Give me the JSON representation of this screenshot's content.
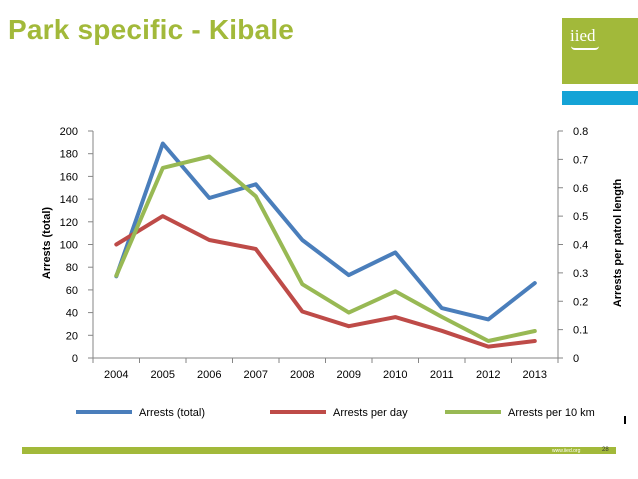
{
  "slide": {
    "title": "Park specific - Kibale",
    "logo_text": "iied",
    "footer_url": "www.iied.org",
    "page_number": "28"
  },
  "colors": {
    "title": "#a2b93a",
    "accent_green": "#a2b93a",
    "accent_blue": "#14a3d6",
    "series_total": "#4a7ebb",
    "series_day": "#be4b48",
    "series_patrol": "#98b954"
  },
  "chart_data": {
    "type": "line",
    "categories": [
      "2004",
      "2005",
      "2006",
      "2007",
      "2008",
      "2009",
      "2010",
      "2011",
      "2012",
      "2013"
    ],
    "y_left": {
      "label": "Arrests (total)",
      "range": [
        0,
        200
      ],
      "ticks": [
        "0",
        "20",
        "40",
        "60",
        "80",
        "100",
        "120",
        "140",
        "160",
        "180",
        "200"
      ]
    },
    "y_right": {
      "label": "Arrests per patrol length",
      "range": [
        0,
        0.8
      ],
      "ticks": [
        "0",
        "0.1",
        "0.2",
        "0.3",
        "0.4",
        "0.5",
        "0.6",
        "0.7",
        "0.8"
      ]
    },
    "series": [
      {
        "name": "Arrests (total)",
        "axis": "left",
        "color": "#4a7ebb",
        "values": [
          72,
          189,
          141,
          153,
          104,
          73,
          93,
          44,
          34,
          66
        ]
      },
      {
        "name": "Arrests per day",
        "axis": "left",
        "color": "#be4b48",
        "values": [
          100,
          125,
          104,
          96,
          41,
          28,
          36,
          24,
          10,
          15
        ]
      },
      {
        "name": "Arrests per 10 km",
        "axis": "right",
        "color": "#98b954",
        "values": [
          0.29,
          0.67,
          0.71,
          0.57,
          0.26,
          0.16,
          0.235,
          0.145,
          0.06,
          0.095
        ]
      }
    ],
    "legend_position": "bottom"
  }
}
